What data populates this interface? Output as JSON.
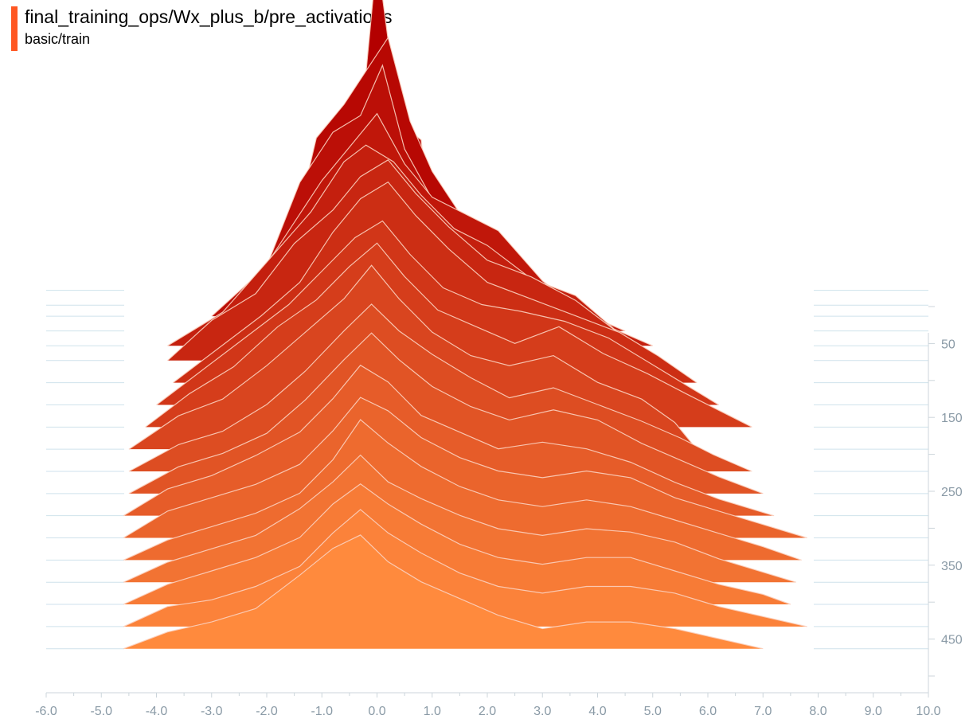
{
  "card": {
    "title": "final_training_ops/Wx_plus_b/pre_activations",
    "run": "basic/train",
    "accent_color": "#ff5722"
  },
  "chart_data": {
    "type": "histogram-ridgeline",
    "xlim": [
      -6.0,
      10.0
    ],
    "x_ticks": [
      "-6.0",
      "-5.0",
      "-4.0",
      "-3.0",
      "-2.0",
      "-1.0",
      "0.0",
      "1.0",
      "2.0",
      "3.0",
      "4.0",
      "5.0",
      "6.0",
      "7.0",
      "8.0",
      "9.0",
      "10.0"
    ],
    "y_ticks": [
      "50",
      "150",
      "250",
      "350",
      "450"
    ],
    "step_range": [
      0,
      500
    ],
    "color_old": "#b30000",
    "color_new": "#ff8a3d",
    "outline_color": "#fbd0bf",
    "series": [
      {
        "step": 5,
        "min": -1.8,
        "max": 1.1,
        "x": [
          -1.8,
          -1.2,
          -0.8,
          -0.4,
          0.0,
          0.4,
          0.8,
          1.1
        ],
        "y": [
          0.0,
          0.35,
          0.25,
          0.3,
          1.0,
          0.5,
          0.45,
          0.0
        ]
      },
      {
        "step": 25,
        "min": -2.5,
        "max": 2.2,
        "x": [
          -2.5,
          -1.6,
          -1.1,
          -0.6,
          -0.2,
          0.2,
          0.6,
          1.0,
          1.4,
          1.8,
          2.2
        ],
        "y": [
          0.0,
          0.15,
          0.5,
          0.6,
          0.7,
          0.8,
          0.55,
          0.4,
          0.3,
          0.2,
          0.0
        ]
      },
      {
        "step": 40,
        "min": -3.0,
        "max": 2.8,
        "x": [
          -3.0,
          -2.0,
          -1.4,
          -0.8,
          -0.3,
          0.1,
          0.5,
          1.0,
          1.6,
          2.2,
          2.8
        ],
        "y": [
          0.0,
          0.15,
          0.4,
          0.55,
          0.6,
          0.75,
          0.5,
          0.35,
          0.3,
          0.15,
          0.0
        ]
      },
      {
        "step": 60,
        "min": -3.3,
        "max": 4.5,
        "x": [
          -3.3,
          -2.4,
          -1.6,
          -1.0,
          -0.5,
          0.0,
          0.5,
          1.0,
          1.6,
          2.2,
          3.0,
          3.8,
          4.5
        ],
        "y": [
          0.0,
          0.1,
          0.3,
          0.45,
          0.55,
          0.65,
          0.5,
          0.4,
          0.35,
          0.3,
          0.15,
          0.05,
          0.0
        ]
      },
      {
        "step": 80,
        "min": -3.8,
        "max": 5.0,
        "x": [
          -3.8,
          -2.8,
          -2.0,
          -1.2,
          -0.6,
          -0.2,
          0.3,
          0.8,
          1.4,
          2.0,
          2.8,
          3.6,
          4.3,
          5.0
        ],
        "y": [
          0.0,
          0.1,
          0.25,
          0.4,
          0.55,
          0.6,
          0.55,
          0.45,
          0.35,
          0.3,
          0.2,
          0.15,
          0.05,
          0.0
        ]
      },
      {
        "step": 100,
        "min": -3.8,
        "max": 5.2,
        "x": [
          -3.8,
          -3.0,
          -2.2,
          -1.5,
          -0.8,
          -0.3,
          0.2,
          0.7,
          1.3,
          2.0,
          2.8,
          3.6,
          4.4,
          5.2
        ],
        "y": [
          0.0,
          0.12,
          0.2,
          0.35,
          0.45,
          0.55,
          0.6,
          0.5,
          0.4,
          0.3,
          0.25,
          0.18,
          0.08,
          0.0
        ]
      },
      {
        "step": 130,
        "min": -3.7,
        "max": 5.8,
        "x": [
          -3.7,
          -2.9,
          -2.1,
          -1.4,
          -0.8,
          -0.3,
          0.2,
          0.7,
          1.3,
          2.0,
          2.8,
          3.6,
          4.4,
          5.1,
          5.8
        ],
        "y": [
          0.0,
          0.1,
          0.2,
          0.3,
          0.45,
          0.55,
          0.6,
          0.5,
          0.4,
          0.3,
          0.25,
          0.2,
          0.15,
          0.08,
          0.0
        ]
      },
      {
        "step": 160,
        "min": -4.0,
        "max": 6.2,
        "x": [
          -4.0,
          -3.2,
          -2.4,
          -1.6,
          -1.0,
          -0.4,
          0.1,
          0.6,
          1.2,
          1.9,
          2.6,
          3.4,
          4.2,
          5.0,
          5.6,
          6.2
        ],
        "y": [
          0.0,
          0.1,
          0.2,
          0.3,
          0.4,
          0.5,
          0.55,
          0.45,
          0.35,
          0.3,
          0.28,
          0.25,
          0.2,
          0.12,
          0.06,
          0.0
        ]
      },
      {
        "step": 190,
        "min": -4.2,
        "max": 6.8,
        "x": [
          -4.2,
          -3.4,
          -2.6,
          -1.8,
          -1.1,
          -0.5,
          0.0,
          0.5,
          1.1,
          1.8,
          2.5,
          3.3,
          4.1,
          4.9,
          5.6,
          6.2,
          6.8
        ],
        "y": [
          0.0,
          0.1,
          0.18,
          0.3,
          0.38,
          0.48,
          0.55,
          0.45,
          0.35,
          0.3,
          0.25,
          0.3,
          0.22,
          0.16,
          0.1,
          0.05,
          0.0
        ]
      },
      {
        "step": 220,
        "min": -4.5,
        "max": 5.8,
        "x": [
          -4.5,
          -3.6,
          -2.8,
          -2.0,
          -1.3,
          -0.6,
          -0.1,
          0.4,
          1.0,
          1.7,
          2.4,
          3.2,
          4.0,
          4.8,
          5.4,
          5.8
        ],
        "y": [
          0.0,
          0.1,
          0.15,
          0.25,
          0.35,
          0.45,
          0.55,
          0.45,
          0.35,
          0.28,
          0.25,
          0.28,
          0.2,
          0.15,
          0.08,
          0.0
        ]
      },
      {
        "step": 250,
        "min": -4.5,
        "max": 6.8,
        "x": [
          -4.5,
          -3.6,
          -2.8,
          -2.0,
          -1.3,
          -0.6,
          -0.1,
          0.4,
          1.0,
          1.7,
          2.4,
          3.2,
          4.0,
          4.8,
          5.5,
          6.1,
          6.8
        ],
        "y": [
          0.0,
          0.08,
          0.12,
          0.2,
          0.3,
          0.42,
          0.5,
          0.42,
          0.35,
          0.28,
          0.22,
          0.25,
          0.2,
          0.15,
          0.1,
          0.05,
          0.0
        ]
      },
      {
        "step": 280,
        "min": -4.5,
        "max": 7.0,
        "x": [
          -4.5,
          -3.6,
          -2.8,
          -2.0,
          -1.3,
          -0.6,
          -0.1,
          0.4,
          1.0,
          1.7,
          2.4,
          3.2,
          4.0,
          4.8,
          5.5,
          6.2,
          7.0
        ],
        "y": [
          0.0,
          0.08,
          0.12,
          0.18,
          0.28,
          0.4,
          0.48,
          0.4,
          0.32,
          0.26,
          0.22,
          0.25,
          0.22,
          0.15,
          0.1,
          0.05,
          0.0
        ]
      },
      {
        "step": 310,
        "min": -4.6,
        "max": 7.2,
        "x": [
          -4.6,
          -3.8,
          -3.0,
          -2.2,
          -1.4,
          -0.8,
          -0.3,
          0.2,
          0.8,
          1.5,
          2.2,
          3.0,
          3.8,
          4.6,
          5.4,
          6.2,
          7.2
        ],
        "y": [
          0.0,
          0.08,
          0.12,
          0.18,
          0.25,
          0.35,
          0.45,
          0.4,
          0.3,
          0.25,
          0.2,
          0.22,
          0.2,
          0.16,
          0.1,
          0.05,
          0.0
        ]
      },
      {
        "step": 340,
        "min": -4.6,
        "max": 7.8,
        "x": [
          -4.6,
          -3.8,
          -3.0,
          -2.2,
          -1.4,
          -0.8,
          -0.3,
          0.2,
          0.8,
          1.5,
          2.2,
          3.0,
          3.8,
          4.6,
          5.4,
          6.2,
          7.0,
          7.8
        ],
        "y": [
          0.0,
          0.08,
          0.12,
          0.16,
          0.22,
          0.32,
          0.42,
          0.38,
          0.3,
          0.24,
          0.2,
          0.18,
          0.2,
          0.18,
          0.12,
          0.08,
          0.04,
          0.0
        ]
      },
      {
        "step": 370,
        "min": -4.6,
        "max": 7.7,
        "x": [
          -4.6,
          -3.8,
          -3.0,
          -2.2,
          -1.4,
          -0.8,
          -0.3,
          0.2,
          0.8,
          1.5,
          2.2,
          3.0,
          3.8,
          4.6,
          5.4,
          6.2,
          7.0,
          7.7
        ],
        "y": [
          0.0,
          0.06,
          0.1,
          0.14,
          0.2,
          0.3,
          0.42,
          0.35,
          0.28,
          0.22,
          0.18,
          0.16,
          0.18,
          0.16,
          0.12,
          0.08,
          0.04,
          0.0
        ]
      },
      {
        "step": 400,
        "min": -4.6,
        "max": 7.6,
        "x": [
          -4.6,
          -3.8,
          -3.0,
          -2.2,
          -1.4,
          -0.8,
          -0.3,
          0.2,
          0.8,
          1.5,
          2.2,
          3.0,
          3.8,
          4.6,
          5.4,
          6.2,
          7.0,
          7.6
        ],
        "y": [
          0.0,
          0.06,
          0.1,
          0.14,
          0.22,
          0.3,
          0.38,
          0.3,
          0.25,
          0.2,
          0.16,
          0.14,
          0.16,
          0.15,
          0.12,
          0.07,
          0.03,
          0.0
        ]
      },
      {
        "step": 430,
        "min": -4.6,
        "max": 7.5,
        "x": [
          -4.6,
          -3.8,
          -3.0,
          -2.2,
          -1.4,
          -0.8,
          -0.3,
          0.2,
          0.8,
          1.5,
          2.2,
          3.0,
          3.8,
          4.6,
          5.4,
          6.2,
          7.0,
          7.5
        ],
        "y": [
          0.0,
          0.06,
          0.1,
          0.14,
          0.2,
          0.3,
          0.36,
          0.3,
          0.24,
          0.18,
          0.14,
          0.12,
          0.14,
          0.14,
          0.1,
          0.06,
          0.03,
          0.0
        ]
      },
      {
        "step": 460,
        "min": -4.6,
        "max": 7.8,
        "x": [
          -4.6,
          -3.8,
          -3.0,
          -2.2,
          -1.4,
          -0.8,
          -0.3,
          0.2,
          0.8,
          1.5,
          2.2,
          3.0,
          3.8,
          4.6,
          5.4,
          6.2,
          7.0,
          7.8
        ],
        "y": [
          0.0,
          0.06,
          0.08,
          0.12,
          0.18,
          0.28,
          0.35,
          0.28,
          0.22,
          0.16,
          0.12,
          0.1,
          0.12,
          0.12,
          0.1,
          0.06,
          0.03,
          0.0
        ]
      },
      {
        "step": 490,
        "min": -4.6,
        "max": 7.0,
        "x": [
          -4.6,
          -3.8,
          -3.0,
          -2.2,
          -1.4,
          -0.8,
          -0.3,
          0.2,
          0.8,
          1.5,
          2.2,
          3.0,
          3.8,
          4.6,
          5.4,
          6.2,
          7.0
        ],
        "y": [
          0.0,
          0.05,
          0.08,
          0.12,
          0.22,
          0.3,
          0.34,
          0.26,
          0.2,
          0.15,
          0.1,
          0.06,
          0.08,
          0.08,
          0.06,
          0.03,
          0.0
        ]
      }
    ]
  }
}
